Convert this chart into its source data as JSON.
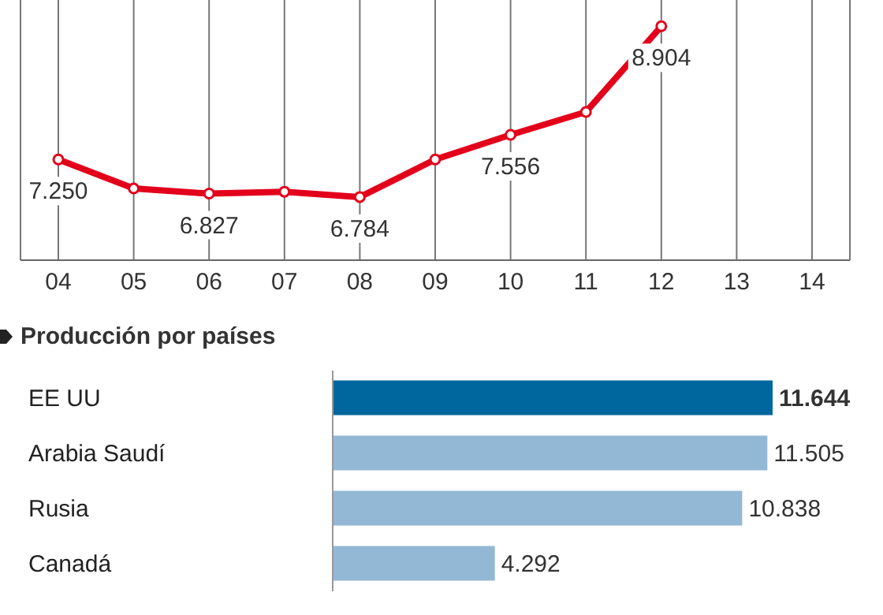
{
  "chart_data": [
    {
      "type": "line",
      "categories": [
        "04",
        "05",
        "06",
        "07",
        "08",
        "09",
        "10",
        "11",
        "12",
        "13",
        "14"
      ],
      "values": [
        7.25,
        6.89,
        6.827,
        6.85,
        6.784,
        7.25,
        7.556,
        7.84,
        8.904,
        null,
        null
      ],
      "value_labels": [
        "7.250",
        null,
        "6.827",
        null,
        "6.784",
        null,
        "7.556",
        null,
        "8.904",
        null,
        null
      ],
      "color": "#e3001b",
      "ylim": [
        6.0,
        9.23
      ],
      "grid": "x",
      "marker": "circle",
      "line_style": "solid",
      "tick_labels": "x"
    },
    {
      "type": "bar",
      "orientation": "horizontal",
      "title": "Producción por países",
      "categories": [
        "EE UU",
        "Arabia Saudí",
        "Rusia",
        "Canadá"
      ],
      "values": [
        11.644,
        11.505,
        10.838,
        4.292
      ],
      "colors": [
        "#00679e",
        "#93b8d5",
        "#93b8d5",
        "#93b8d5"
      ],
      "value_labels": [
        "11.644",
        "11.505",
        "10.838",
        "4.292"
      ],
      "tick_labels": "y"
    }
  ]
}
